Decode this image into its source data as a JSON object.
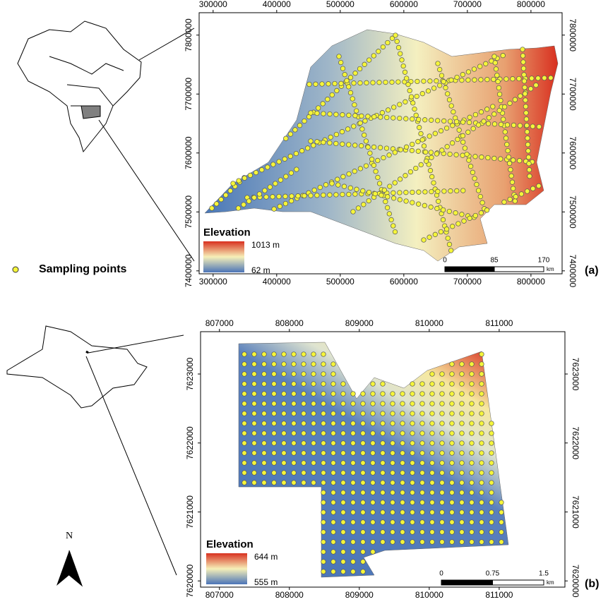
{
  "panels": [
    {
      "label": "(a)",
      "x_ticks": [
        300000,
        400000,
        500000,
        600000,
        700000,
        800000
      ],
      "y_ticks": [
        7800000,
        7700000,
        7600000,
        7500000,
        7400000
      ],
      "xlim": [
        278000,
        849000
      ],
      "ylim": [
        7395000,
        7838000
      ],
      "legend": {
        "title": "Elevation",
        "max": "1013 m",
        "min": "62 m"
      },
      "scale_bar": {
        "labels": [
          "0",
          "85",
          "170"
        ],
        "unit": "km"
      }
    },
    {
      "label": "(b)",
      "x_ticks": [
        807000,
        808000,
        809000,
        810000,
        811000
      ],
      "y_ticks": [
        7623000,
        7622000,
        7621000,
        7620000
      ],
      "xlim": [
        806730,
        811940
      ],
      "ylim": [
        7619910,
        7623614
      ],
      "legend": {
        "title": "Elevation",
        "max": "644 m",
        "min": "555 m"
      },
      "scale_bar": {
        "labels": [
          "0",
          "0.75",
          "1.5"
        ],
        "unit": "km"
      }
    }
  ],
  "sampling_points_label": "Sampling points",
  "north": "N"
}
